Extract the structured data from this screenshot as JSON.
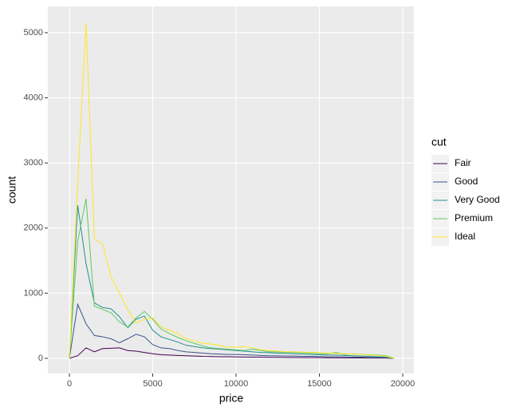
{
  "chart_data": {
    "type": "line",
    "x_label": "price",
    "y_label": "count",
    "legend_title": "cut",
    "legend_position": "right",
    "grid": true,
    "xlim": [
      -1292,
      20670
    ],
    "ylim": [
      -233,
      5404
    ],
    "xticks": [
      0,
      5000,
      10000,
      15000,
      20000
    ],
    "yticks": [
      0,
      1000,
      2000,
      3000,
      4000,
      5000
    ],
    "x": [
      0,
      500,
      1000,
      1500,
      2000,
      2500,
      3000,
      3500,
      4000,
      4500,
      5000,
      5500,
      6000,
      6500,
      7000,
      7500,
      8000,
      8500,
      9000,
      9500,
      10000,
      10500,
      11000,
      11500,
      12000,
      12500,
      13000,
      13500,
      14000,
      14500,
      15000,
      15500,
      16000,
      16500,
      17000,
      17500,
      18000,
      18500,
      19000,
      19500
    ],
    "series": [
      {
        "name": "Fair",
        "color": "#440154",
        "values": [
          0,
          40,
          160,
          100,
          150,
          155,
          160,
          120,
          110,
          90,
          70,
          55,
          50,
          45,
          40,
          35,
          30,
          28,
          25,
          25,
          22,
          20,
          18,
          18,
          15,
          15,
          12,
          12,
          10,
          10,
          10,
          8,
          8,
          8,
          6,
          6,
          5,
          5,
          4,
          0
        ]
      },
      {
        "name": "Good",
        "color": "#3B528B",
        "values": [
          0,
          830,
          530,
          350,
          330,
          300,
          240,
          300,
          370,
          330,
          210,
          160,
          150,
          120,
          100,
          90,
          80,
          70,
          65,
          60,
          60,
          55,
          50,
          45,
          40,
          40,
          35,
          35,
          30,
          30,
          28,
          25,
          25,
          22,
          20,
          18,
          15,
          12,
          10,
          0
        ]
      },
      {
        "name": "Very Good",
        "color": "#21908C",
        "values": [
          0,
          2350,
          1450,
          850,
          780,
          760,
          640,
          470,
          600,
          650,
          430,
          330,
          290,
          250,
          200,
          180,
          160,
          150,
          140,
          130,
          120,
          110,
          100,
          90,
          85,
          80,
          75,
          70,
          65,
          60,
          55,
          50,
          50,
          45,
          40,
          35,
          30,
          25,
          20,
          0
        ]
      },
      {
        "name": "Premium",
        "color": "#5DC863",
        "values": [
          0,
          1800,
          2450,
          800,
          750,
          700,
          560,
          480,
          620,
          720,
          600,
          450,
          380,
          320,
          270,
          230,
          190,
          160,
          150,
          140,
          130,
          120,
          140,
          120,
          100,
          100,
          90,
          90,
          85,
          80,
          70,
          70,
          90,
          60,
          70,
          60,
          55,
          50,
          40,
          0
        ]
      },
      {
        "name": "Ideal",
        "color": "#FDE725",
        "values": [
          0,
          2700,
          5150,
          1830,
          1750,
          1250,
          1000,
          750,
          540,
          600,
          620,
          480,
          430,
          380,
          300,
          270,
          230,
          220,
          200,
          170,
          170,
          180,
          160,
          130,
          120,
          110,
          100,
          100,
          95,
          90,
          85,
          80,
          75,
          70,
          65,
          60,
          50,
          45,
          30,
          0
        ]
      }
    ]
  }
}
